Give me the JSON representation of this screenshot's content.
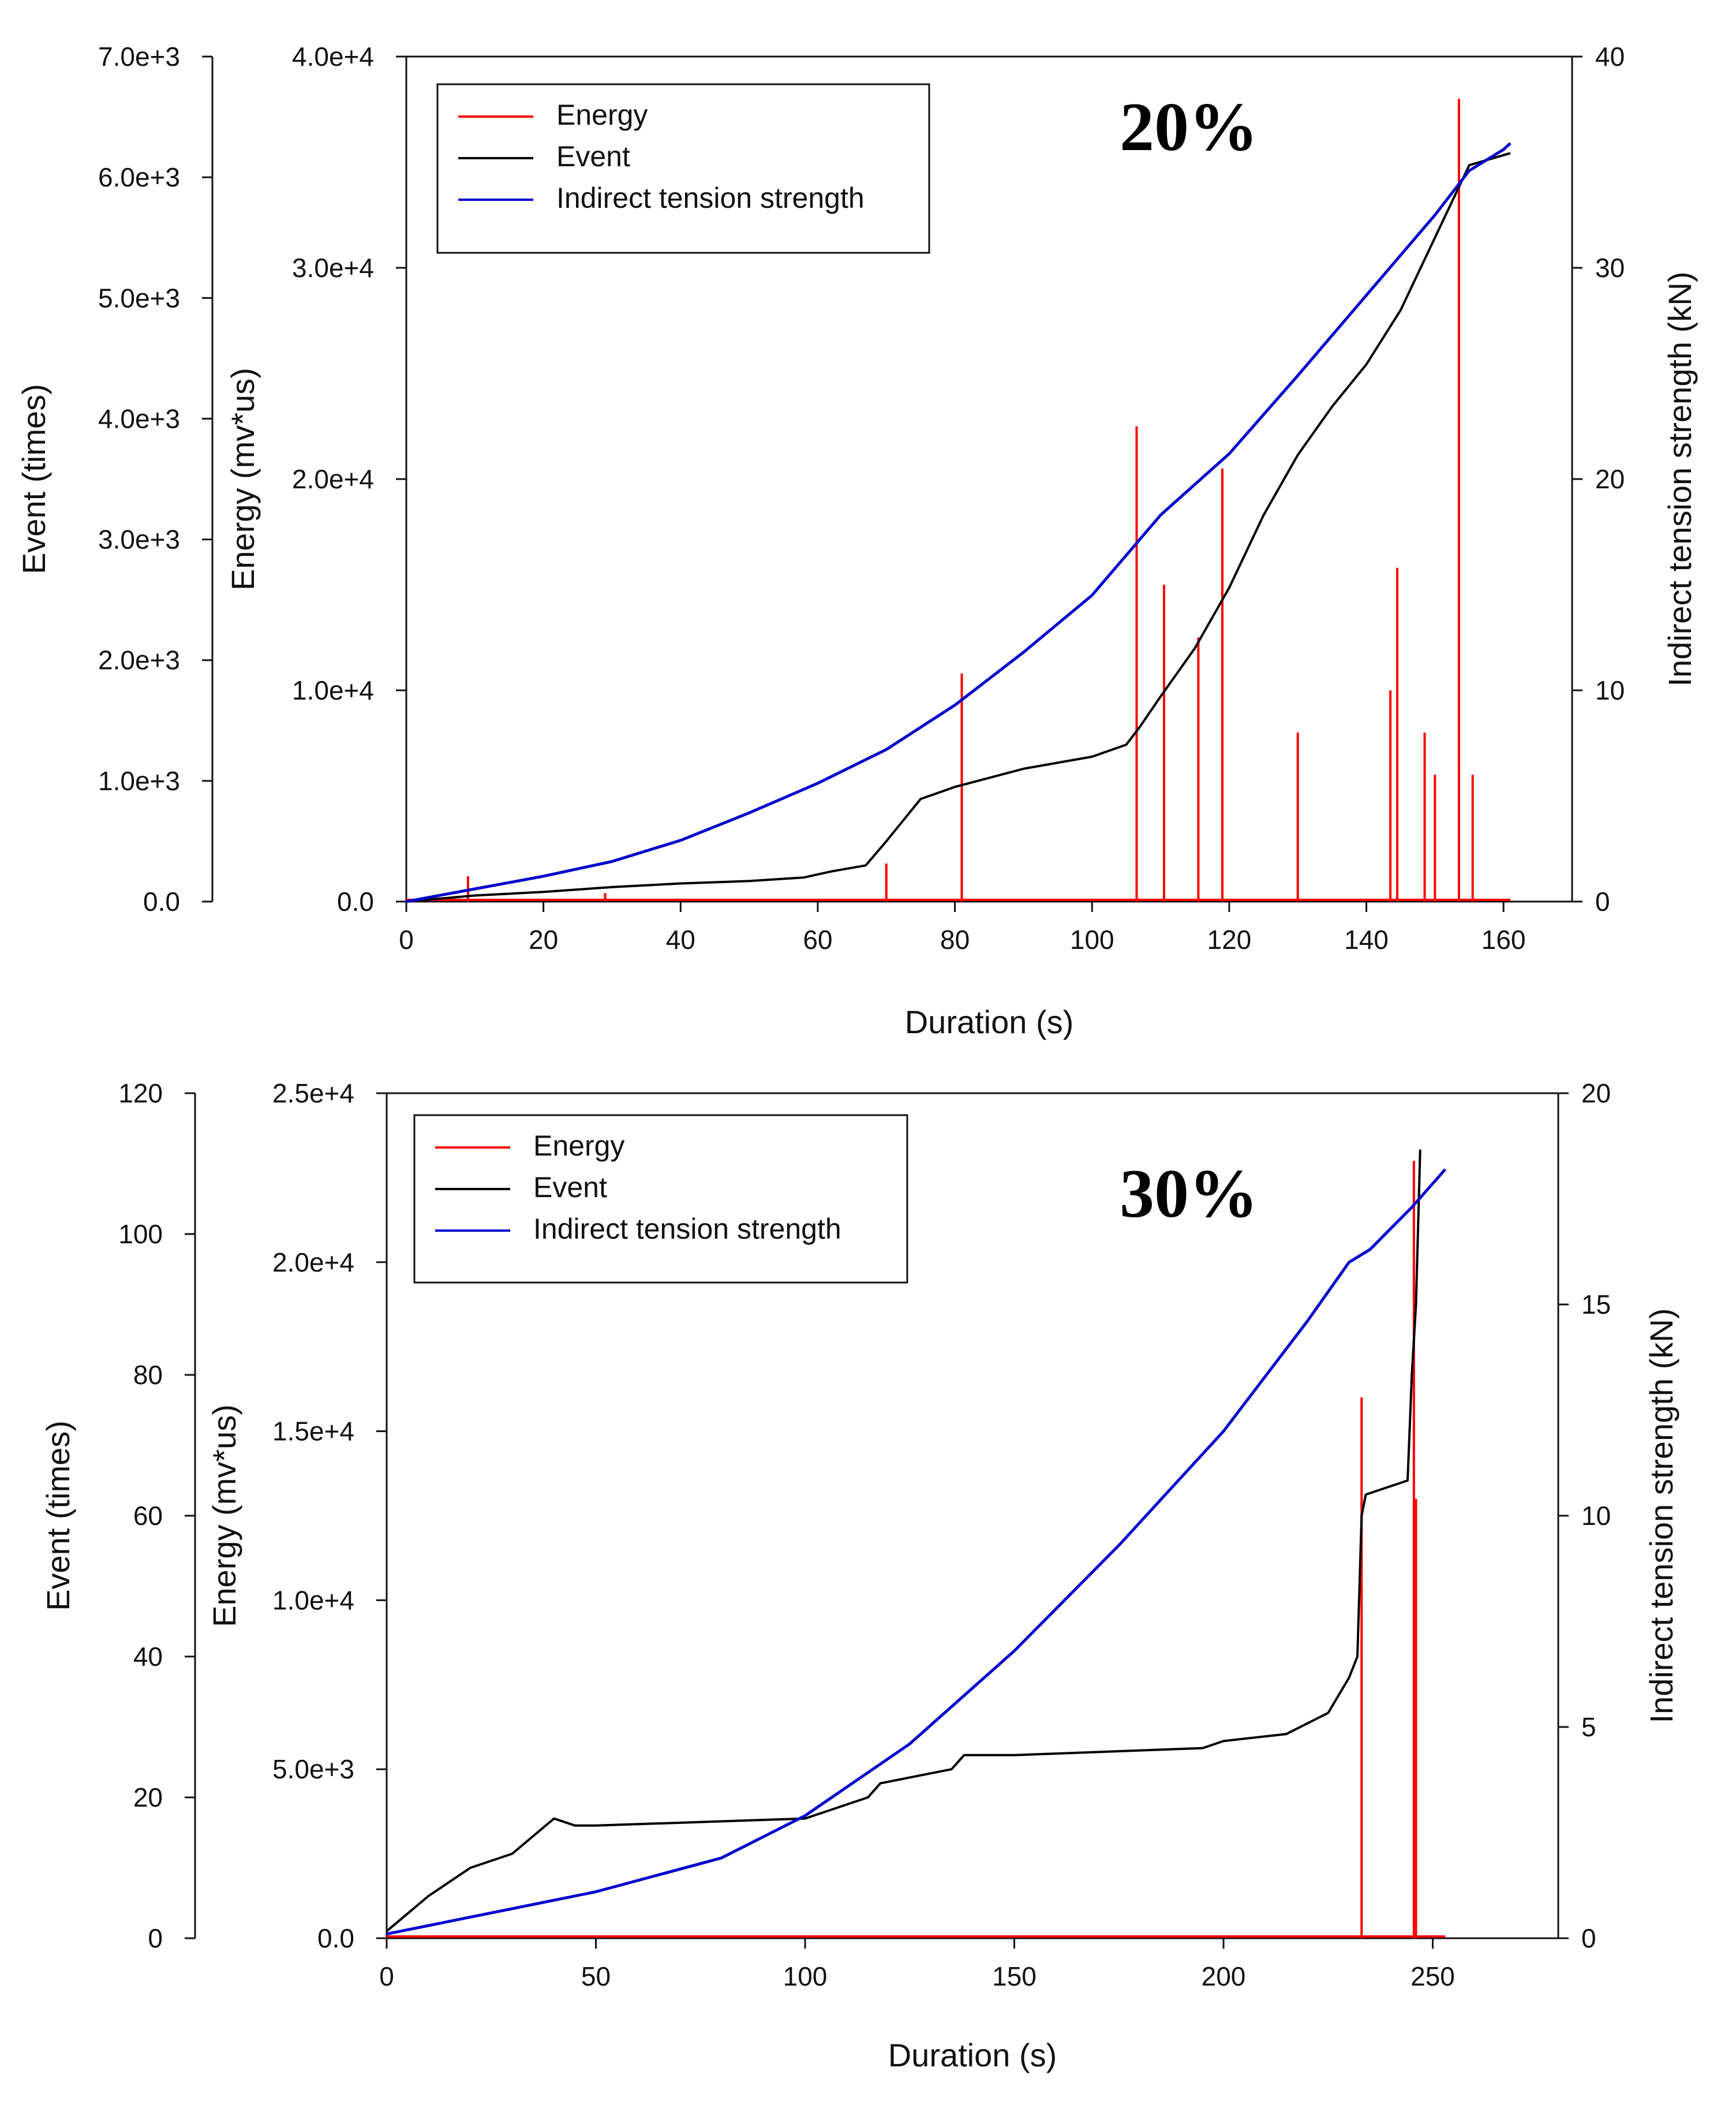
{
  "chart_data": [
    {
      "type": "line",
      "annotation": "20%",
      "xlabel": "Duration (s)",
      "xlim": [
        0,
        170
      ],
      "xticks": [
        "0",
        "20",
        "40",
        "60",
        "80",
        "100",
        "120",
        "140",
        "160"
      ],
      "xtick_values": [
        0,
        20,
        40,
        60,
        80,
        100,
        120,
        140,
        160
      ],
      "axes": {
        "event": {
          "label": "Event (times)",
          "ylim": [
            0,
            7000
          ],
          "ticks": [
            "0.0",
            "1.0e+3",
            "2.0e+3",
            "3.0e+3",
            "4.0e+3",
            "5.0e+3",
            "6.0e+3",
            "7.0e+3"
          ],
          "tick_values": [
            0,
            1000,
            2000,
            3000,
            4000,
            5000,
            6000,
            7000
          ]
        },
        "energy": {
          "label": "Energy (mv*us)",
          "ylim": [
            0,
            40000
          ],
          "ticks": [
            "0.0",
            "1.0e+4",
            "2.0e+4",
            "3.0e+4",
            "4.0e+4"
          ],
          "tick_values": [
            0,
            10000,
            20000,
            30000,
            40000
          ]
        },
        "strength": {
          "label": "Indirect tension strength (kN)",
          "ylim": [
            0,
            40
          ],
          "ticks": [
            "0",
            "10",
            "20",
            "30",
            "40"
          ],
          "tick_values": [
            0,
            10,
            20,
            30,
            40
          ]
        }
      },
      "legend": [
        "Energy",
        "Event",
        "Indirect tension strength"
      ],
      "colors": {
        "Energy": "#ff0000",
        "Event": "#000000",
        "Indirect tension strength": "#0000cc"
      },
      "series": [
        {
          "name": "Indirect tension strength",
          "axis": "strength",
          "x": [
            0,
            10,
            20,
            30,
            40,
            50,
            60,
            70,
            80,
            90,
            100,
            110,
            120,
            130,
            140,
            150,
            155,
            160,
            161
          ],
          "y": [
            0,
            0.6,
            1.2,
            1.9,
            2.9,
            4.2,
            5.6,
            7.2,
            9.3,
            11.8,
            14.5,
            18.3,
            21.2,
            24.9,
            28.7,
            32.5,
            34.6,
            35.6,
            35.9
          ]
        },
        {
          "name": "Event",
          "axis": "event",
          "x": [
            0,
            10,
            20,
            30,
            40,
            50,
            58,
            62,
            67,
            70,
            75,
            80,
            90,
            100,
            105,
            107,
            110,
            115,
            120,
            125,
            130,
            135,
            140,
            145,
            150,
            155,
            161
          ],
          "y": [
            0,
            50,
            80,
            120,
            150,
            170,
            200,
            250,
            300,
            500,
            850,
            950,
            1100,
            1200,
            1300,
            1450,
            1700,
            2100,
            2600,
            3200,
            3700,
            4100,
            4450,
            4900,
            5500,
            6100,
            6200
          ]
        },
        {
          "name": "Energy",
          "axis": "energy",
          "x": [
            9,
            29,
            70,
            81,
            106.5,
            110.5,
            115.5,
            119,
            130,
            143.5,
            144.5,
            148.5,
            150,
            153.5,
            155.5
          ],
          "y": [
            1200,
            400,
            1800,
            10800,
            22500,
            15000,
            12500,
            20500,
            8000,
            10000,
            15800,
            8000,
            6000,
            38000,
            6000
          ]
        }
      ]
    },
    {
      "type": "line",
      "annotation": "30%",
      "xlabel": "Duration (s)",
      "xlim": [
        0,
        280
      ],
      "xticks": [
        "0",
        "50",
        "100",
        "150",
        "200",
        "250"
      ],
      "xtick_values": [
        0,
        50,
        100,
        150,
        200,
        250
      ],
      "axes": {
        "event": {
          "label": "Event (times)",
          "ylim": [
            0,
            120
          ],
          "ticks": [
            "0",
            "20",
            "40",
            "60",
            "80",
            "100",
            "120"
          ],
          "tick_values": [
            0,
            20,
            40,
            60,
            80,
            100,
            120
          ]
        },
        "energy": {
          "label": "Energy (mv*us)",
          "ylim": [
            0,
            25000
          ],
          "ticks": [
            "0.0",
            "5.0e+3",
            "1.0e+4",
            "1.5e+4",
            "2.0e+4",
            "2.5e+4"
          ],
          "tick_values": [
            0,
            5000,
            10000,
            15000,
            20000,
            25000
          ]
        },
        "strength": {
          "label": "Indirect tension strength (kN)",
          "ylim": [
            0,
            20
          ],
          "ticks": [
            "0",
            "5",
            "10",
            "15",
            "20"
          ],
          "tick_values": [
            0,
            5,
            10,
            15,
            20
          ]
        }
      },
      "legend": [
        "Energy",
        "Event",
        "Indirect tension strength"
      ],
      "colors": {
        "Energy": "#ff0000",
        "Event": "#000000",
        "Indirect tension strength": "#0000cc"
      },
      "series": [
        {
          "name": "Indirect tension strength",
          "axis": "strength",
          "x": [
            0,
            25,
            50,
            80,
            100,
            125,
            150,
            175,
            200,
            220,
            230,
            235,
            245,
            253
          ],
          "y": [
            0.1,
            0.6,
            1.1,
            1.9,
            2.9,
            4.6,
            6.8,
            9.3,
            12.0,
            14.6,
            16.0,
            16.3,
            17.3,
            18.2
          ]
        },
        {
          "name": "Event",
          "axis": "event",
          "x": [
            0,
            10,
            20,
            30,
            40,
            45,
            50,
            100,
            115,
            118,
            135,
            138,
            150,
            195,
            200,
            215,
            225,
            230,
            232,
            233,
            234,
            244,
            245,
            246,
            247
          ],
          "y": [
            1,
            6,
            10,
            12,
            17,
            16,
            16,
            17,
            20,
            22,
            24,
            26,
            26,
            27,
            28,
            29,
            32,
            37,
            40,
            60,
            63,
            65,
            80,
            90,
            112
          ]
        },
        {
          "name": "Energy",
          "axis": "energy",
          "x": [
            233,
            245.5,
            246
          ],
          "y": [
            16000,
            23000,
            13000
          ]
        }
      ]
    }
  ]
}
